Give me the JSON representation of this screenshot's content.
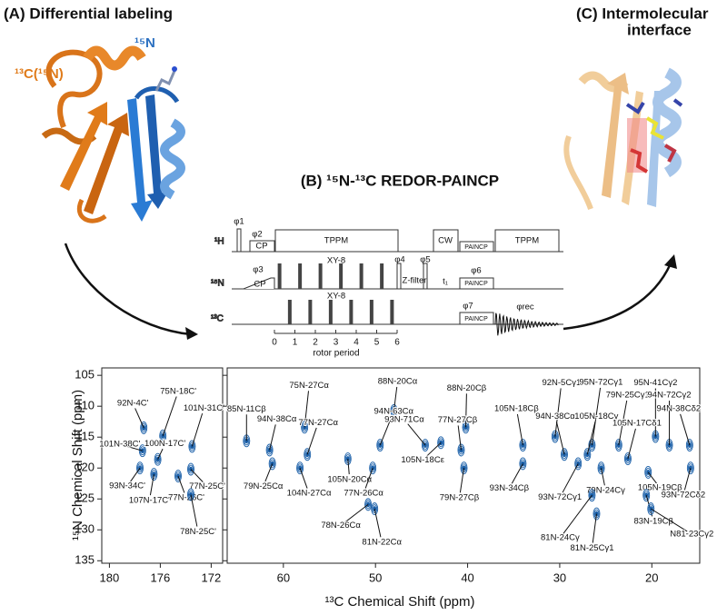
{
  "panel_a": {
    "title": "(A) Differential labeling",
    "label_13c": "¹³C(¹⁵N)",
    "label_15n": "¹⁵N"
  },
  "panel_b": {
    "title": "(B) ¹⁵N-¹³C REDOR-PAINCP",
    "channels": [
      "¹H",
      "¹⁵N",
      "¹³C"
    ],
    "pulse_labels": [
      "φ1",
      "φ2",
      "CP",
      "TPPM",
      "CW",
      "PAINCP",
      "TPPM",
      "φ3",
      "CP",
      "XY-8",
      "φ4",
      "Z-filter",
      "φ5",
      "t₁",
      "φ6",
      "PAINCP",
      "φ7",
      "XY-8",
      "PAINCP",
      "φrec"
    ],
    "rotor_ticks": [
      0,
      1,
      2,
      3,
      4,
      5,
      6
    ],
    "rotor_label": "rotor period"
  },
  "panel_c": {
    "title_lines": [
      "(C) Intermolecular",
      "interface"
    ]
  },
  "chart_data": [
    {
      "type": "scatter",
      "color": "#1a5fa8",
      "ylabel": "¹⁵N Chemical Shift (ppm)",
      "xlim": [
        180.6,
        171.1
      ],
      "ylim": [
        103.8,
        135.4
      ],
      "xticks": [
        180,
        176,
        172
      ],
      "yticks": [
        105,
        110,
        115,
        120,
        125,
        130,
        135
      ],
      "labels": [
        "92N-4C'",
        "75N-18C'",
        "101N-31C'",
        "101N-38C'",
        "100N-17C'",
        "93N-34C'",
        "107N-17C'",
        "77N-26C'",
        "77N-25C'",
        "78N-25C'"
      ],
      "x": [
        177.3,
        175.8,
        173.5,
        177.4,
        176.2,
        177.6,
        176.5,
        174.6,
        173.6,
        173.6
      ],
      "y": [
        113.5,
        114.8,
        116.5,
        117.2,
        118.6,
        120.0,
        121.0,
        121.3,
        120.2,
        124.3
      ]
    },
    {
      "type": "scatter",
      "color": "#1a5fa8",
      "xlabel": "¹³C Chemical Shift (ppm)",
      "xlim": [
        66.1,
        14.8
      ],
      "ylim": [
        103.8,
        135.4
      ],
      "xticks": [
        60,
        50,
        40,
        30,
        20
      ],
      "yticks": [
        105,
        110,
        115,
        120,
        125,
        130,
        135
      ],
      "labels": [
        "75N-27Cα",
        "88N-20Cα",
        "88N-20Cβ",
        "85N-11Cβ",
        "94N-38Cα",
        "94N-63Cα",
        "77N-27Cα",
        "93N-71Cα",
        "77N-27Cβ",
        "105N-18Cε",
        "79N-25Cα",
        "104N-27Cα",
        "105N-20Cα",
        "77N-26Cα",
        "79N-27Cβ",
        "78N-26Cα",
        "81N-22Cα",
        "92N-5Cγ1",
        "95N-72Cγ1",
        "95N-41Cγ2",
        "105N-18Cβ",
        "79N-25Cγ1",
        "94N-72Cγ2",
        "94N-38Cα",
        "105N-18Cγ",
        "105N-17Cδ1",
        "94N-38Cδ2",
        "93N-34Cβ",
        "93N-72Cγ1",
        "79N-24Cγ",
        "105N-19Cβ",
        "93N-72Cδ2",
        "83N-19Cβ",
        "81N-24Cγ",
        "N81-23Cγ2",
        "81N-25Cγ1"
      ],
      "x": [
        57.7,
        48.0,
        40.2,
        64.0,
        61.5,
        49.5,
        57.4,
        44.6,
        40.7,
        42.9,
        61.2,
        58.2,
        53.0,
        50.3,
        40.4,
        50.8,
        50.1,
        30.5,
        26.5,
        19.6,
        34.0,
        23.6,
        18.1,
        29.5,
        27.0,
        22.6,
        15.9,
        34.0,
        28.0,
        25.5,
        20.4,
        15.8,
        20.6,
        26.5,
        20.1,
        26.0
      ],
      "y": [
        113.4,
        110.7,
        113.4,
        115.6,
        117.1,
        116.3,
        117.8,
        116.3,
        117.1,
        115.9,
        119.3,
        120.0,
        118.5,
        120.0,
        120.0,
        125.9,
        126.6,
        114.9,
        116.3,
        114.9,
        116.3,
        116.3,
        116.3,
        117.8,
        117.8,
        118.5,
        116.3,
        119.3,
        119.3,
        120.0,
        120.7,
        120.0,
        124.4,
        124.4,
        126.6,
        127.4
      ]
    }
  ]
}
